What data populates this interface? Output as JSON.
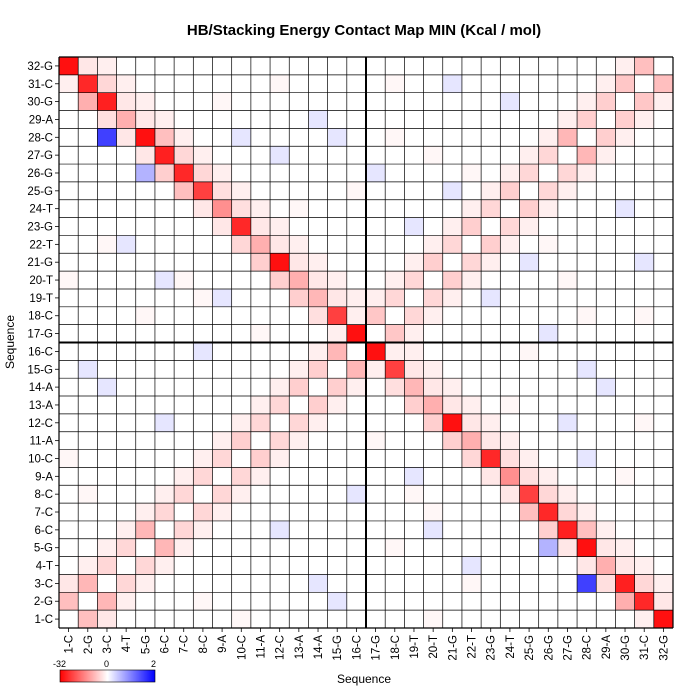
{
  "chart_data": {
    "type": "heatmap",
    "title": "HB/Stacking Energy Contact Map MIN (Kcal / mol)",
    "xlabel": "Sequence",
    "ylabel": "Sequence",
    "labels": [
      "1-C",
      "2-G",
      "3-C",
      "4-T",
      "5-G",
      "6-C",
      "7-C",
      "8-C",
      "9-A",
      "10-C",
      "11-A",
      "12-C",
      "13-A",
      "14-A",
      "15-G",
      "16-C",
      "17-G",
      "18-C",
      "19-T",
      "20-T",
      "21-G",
      "22-T",
      "23-G",
      "24-T",
      "25-G",
      "26-G",
      "27-G",
      "28-C",
      "29-A",
      "30-G",
      "31-C",
      "32-G"
    ],
    "colorbar": {
      "min": -32,
      "mid": 0,
      "max": 2,
      "min_label": "-32",
      "mid_label": "0",
      "max_label": "2",
      "colors": {
        "low": "#ff0000",
        "mid": "#ffffff",
        "high": "#0000ff"
      }
    },
    "divider_after_index": 16,
    "cells": [
      [
        1,
        2,
        -8
      ],
      [
        2,
        3,
        -9
      ],
      [
        3,
        4,
        -5
      ],
      [
        4,
        5,
        -5
      ],
      [
        5,
        6,
        -9
      ],
      [
        6,
        7,
        -5
      ],
      [
        7,
        8,
        -5
      ],
      [
        8,
        9,
        -5
      ],
      [
        9,
        10,
        -5
      ],
      [
        10,
        11,
        -6
      ],
      [
        11,
        12,
        -5
      ],
      [
        12,
        13,
        -5
      ],
      [
        13,
        14,
        -6
      ],
      [
        14,
        15,
        -6
      ],
      [
        15,
        16,
        -9
      ],
      [
        16,
        17,
        -30
      ],
      [
        17,
        18,
        -7
      ],
      [
        18,
        19,
        -5
      ],
      [
        19,
        20,
        -5
      ],
      [
        20,
        21,
        -6
      ],
      [
        21,
        22,
        -5
      ],
      [
        22,
        23,
        -6
      ],
      [
        23,
        24,
        -5
      ],
      [
        24,
        25,
        -6
      ],
      [
        25,
        26,
        -5
      ],
      [
        26,
        27,
        -5
      ],
      [
        27,
        28,
        -9
      ],
      [
        28,
        29,
        -6
      ],
      [
        29,
        30,
        -6
      ],
      [
        30,
        31,
        -7
      ],
      [
        31,
        32,
        -8
      ],
      [
        1,
        32,
        -30
      ],
      [
        2,
        31,
        -27
      ],
      [
        3,
        30,
        -28
      ],
      [
        4,
        29,
        -10
      ],
      [
        5,
        28,
        -30
      ],
      [
        6,
        27,
        -28
      ],
      [
        7,
        26,
        -27
      ],
      [
        8,
        25,
        -24
      ],
      [
        9,
        24,
        -14
      ],
      [
        10,
        23,
        -27
      ],
      [
        11,
        22,
        -10
      ],
      [
        12,
        21,
        -30
      ],
      [
        13,
        20,
        -10
      ],
      [
        14,
        19,
        -9
      ],
      [
        15,
        18,
        -24
      ],
      [
        2,
        30,
        -10
      ],
      [
        3,
        29,
        -4
      ],
      [
        4,
        28,
        -3
      ],
      [
        5,
        27,
        -3
      ],
      [
        6,
        26,
        -6
      ],
      [
        7,
        25,
        -8
      ],
      [
        8,
        24,
        -3
      ],
      [
        9,
        23,
        -3
      ],
      [
        10,
        22,
        -5
      ],
      [
        11,
        21,
        -6
      ],
      [
        12,
        20,
        -6
      ],
      [
        13,
        19,
        -6
      ],
      [
        14,
        18,
        -4
      ],
      [
        15,
        17,
        -3
      ],
      [
        3,
        31,
        -5
      ],
      [
        4,
        30,
        -3
      ],
      [
        5,
        29,
        -3
      ],
      [
        6,
        28,
        -8
      ],
      [
        7,
        27,
        -5
      ],
      [
        8,
        26,
        -5
      ],
      [
        9,
        25,
        -4
      ],
      [
        10,
        24,
        -4
      ],
      [
        11,
        23,
        -3
      ],
      [
        12,
        22,
        -3
      ],
      [
        13,
        21,
        -3
      ],
      [
        14,
        20,
        -3
      ],
      [
        15,
        19,
        -3
      ],
      [
        1,
        3,
        -3
      ],
      [
        2,
        4,
        -2
      ],
      [
        3,
        5,
        -2
      ],
      [
        4,
        6,
        -2
      ],
      [
        5,
        7,
        -2
      ],
      [
        6,
        8,
        -2
      ],
      [
        7,
        9,
        -2
      ],
      [
        8,
        10,
        -2
      ],
      [
        9,
        11,
        -2
      ],
      [
        10,
        12,
        -2
      ],
      [
        11,
        13,
        -2
      ],
      [
        12,
        14,
        -2
      ],
      [
        13,
        15,
        -2
      ],
      [
        14,
        16,
        -2
      ],
      [
        15,
        17,
        -2
      ],
      [
        16,
        18,
        -2
      ],
      [
        17,
        19,
        -2
      ],
      [
        18,
        20,
        -2
      ],
      [
        19,
        21,
        -2
      ],
      [
        20,
        22,
        -2
      ],
      [
        21,
        23,
        -2
      ],
      [
        22,
        24,
        -2
      ],
      [
        23,
        25,
        -2
      ],
      [
        24,
        26,
        -2
      ],
      [
        25,
        27,
        -2
      ],
      [
        26,
        28,
        -2
      ],
      [
        27,
        29,
        -2
      ],
      [
        28,
        30,
        -2
      ],
      [
        29,
        31,
        -2
      ],
      [
        30,
        32,
        -2
      ],
      [
        3,
        28,
        1.5
      ],
      [
        5,
        26,
        0.6
      ],
      [
        2,
        32,
        -3
      ],
      [
        1,
        31,
        -2
      ],
      [
        3,
        32,
        -2
      ],
      [
        4,
        31,
        -2
      ],
      [
        5,
        30,
        -2
      ],
      [
        6,
        29,
        -2
      ],
      [
        7,
        28,
        -2
      ],
      [
        8,
        27,
        -2
      ],
      [
        9,
        26,
        -2
      ],
      [
        10,
        25,
        -2
      ],
      [
        11,
        24,
        -2
      ],
      [
        12,
        23,
        -2
      ],
      [
        13,
        22,
        -2
      ],
      [
        14,
        21,
        -2
      ],
      [
        15,
        20,
        -2
      ],
      [
        16,
        19,
        -2
      ],
      [
        1,
        10,
        -1
      ],
      [
        2,
        8,
        -1
      ],
      [
        3,
        14,
        0.2
      ],
      [
        4,
        22,
        0.2
      ],
      [
        5,
        18,
        -1
      ],
      [
        6,
        12,
        0.2
      ],
      [
        7,
        20,
        -1
      ],
      [
        8,
        16,
        0.2
      ],
      [
        9,
        30,
        -1
      ],
      [
        10,
        28,
        0.2
      ],
      [
        11,
        17,
        -1
      ],
      [
        12,
        27,
        0.2
      ],
      [
        13,
        24,
        -1
      ],
      [
        14,
        29,
        0.2
      ],
      [
        16,
        25,
        -1
      ],
      [
        17,
        26,
        0.2
      ],
      [
        18,
        28,
        -1
      ],
      [
        19,
        23,
        0.2
      ],
      [
        20,
        27,
        -1
      ],
      [
        21,
        31,
        0.2
      ],
      [
        22,
        26,
        -1
      ],
      [
        24,
        30,
        0.2
      ],
      [
        1,
        20,
        -1
      ],
      [
        2,
        15,
        0.2
      ],
      [
        3,
        22,
        -1
      ],
      [
        6,
        20,
        0.2
      ],
      [
        8,
        19,
        -1
      ],
      [
        9,
        19,
        0.2
      ],
      [
        12,
        31,
        -1
      ],
      [
        15,
        28,
        0.2
      ],
      [
        18,
        31,
        -1
      ],
      [
        21,
        25,
        0.2
      ]
    ]
  }
}
